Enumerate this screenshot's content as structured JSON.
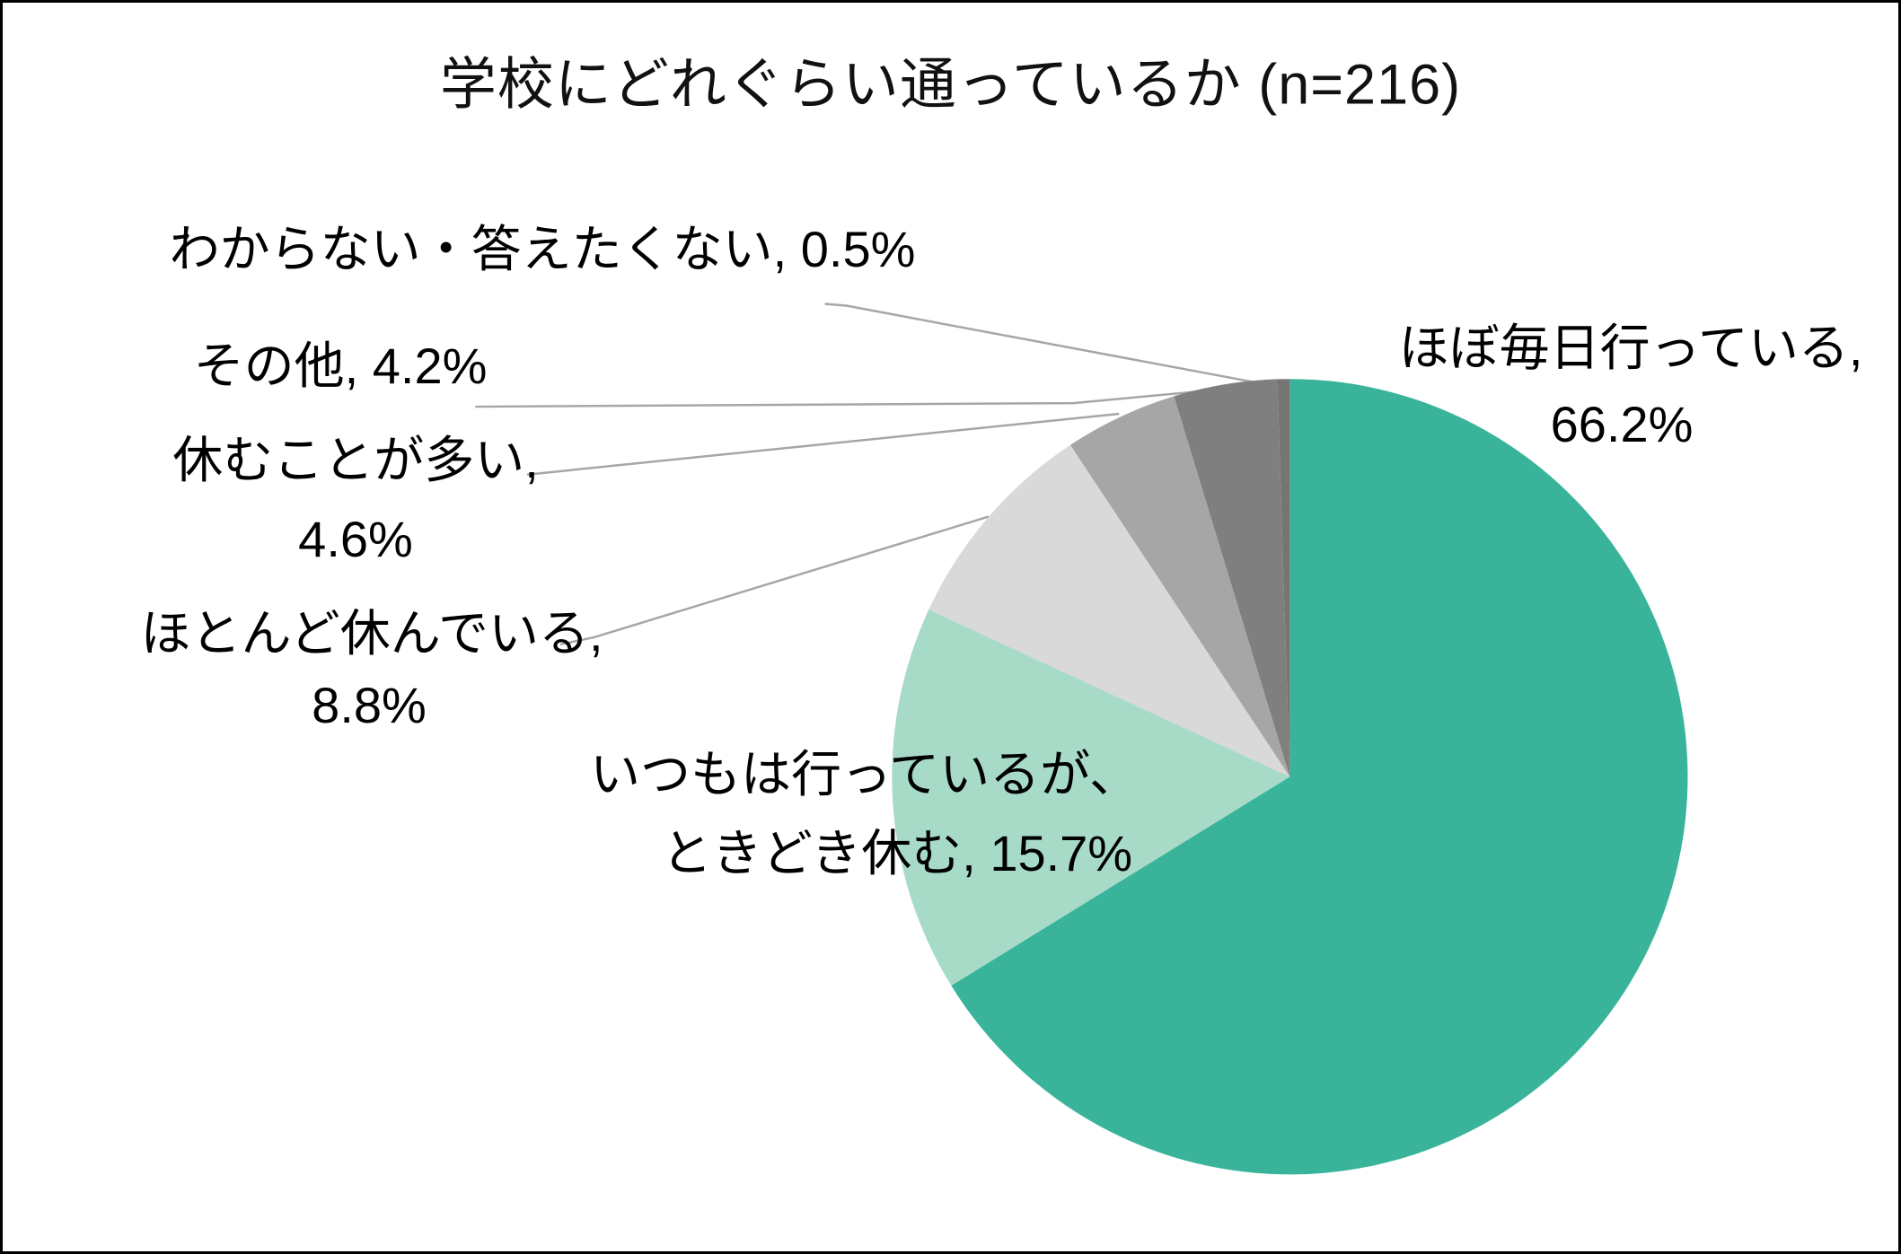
{
  "title": "学校にどれぐらい通っているか (n=216)",
  "chart_data": {
    "type": "pie",
    "title": "学校にどれぐらい通っているか (n=216)",
    "sample_size_label": "n=216",
    "start_angle": "top",
    "direction": "clockwise",
    "unit": "%",
    "categories": [
      "ほぼ毎日行っている",
      "いつもは行っているが、ときどき休む",
      "ほとんど休んでいる",
      "休むことが多い",
      "その他",
      "わからない・答えたくない"
    ],
    "values": [
      66.2,
      15.7,
      8.8,
      4.6,
      4.2,
      0.5
    ],
    "colors": [
      "#39B49B",
      "#A8DBC7",
      "#D9D9D9",
      "#A6A6A6",
      "#7F7F7F",
      "#757575"
    ],
    "leader_line_color": "#A6A6A6",
    "labels": {
      "almost_every_day": {
        "line1": "ほぼ毎日行っている,",
        "line2": "66.2%"
      },
      "usually_sometimes_absent": {
        "line1": "いつもは行っているが、",
        "line2": "ときどき休む, 15.7%"
      },
      "mostly_absent": {
        "line1": "ほとんど休んでいる,",
        "line2": "8.8%"
      },
      "often_absent": {
        "line1": "休むことが多い,",
        "line2": "4.6%"
      },
      "other": {
        "line1": "その他, 4.2%"
      },
      "dont_know": {
        "line1": "わからない・答えたくない, 0.5%"
      }
    }
  }
}
